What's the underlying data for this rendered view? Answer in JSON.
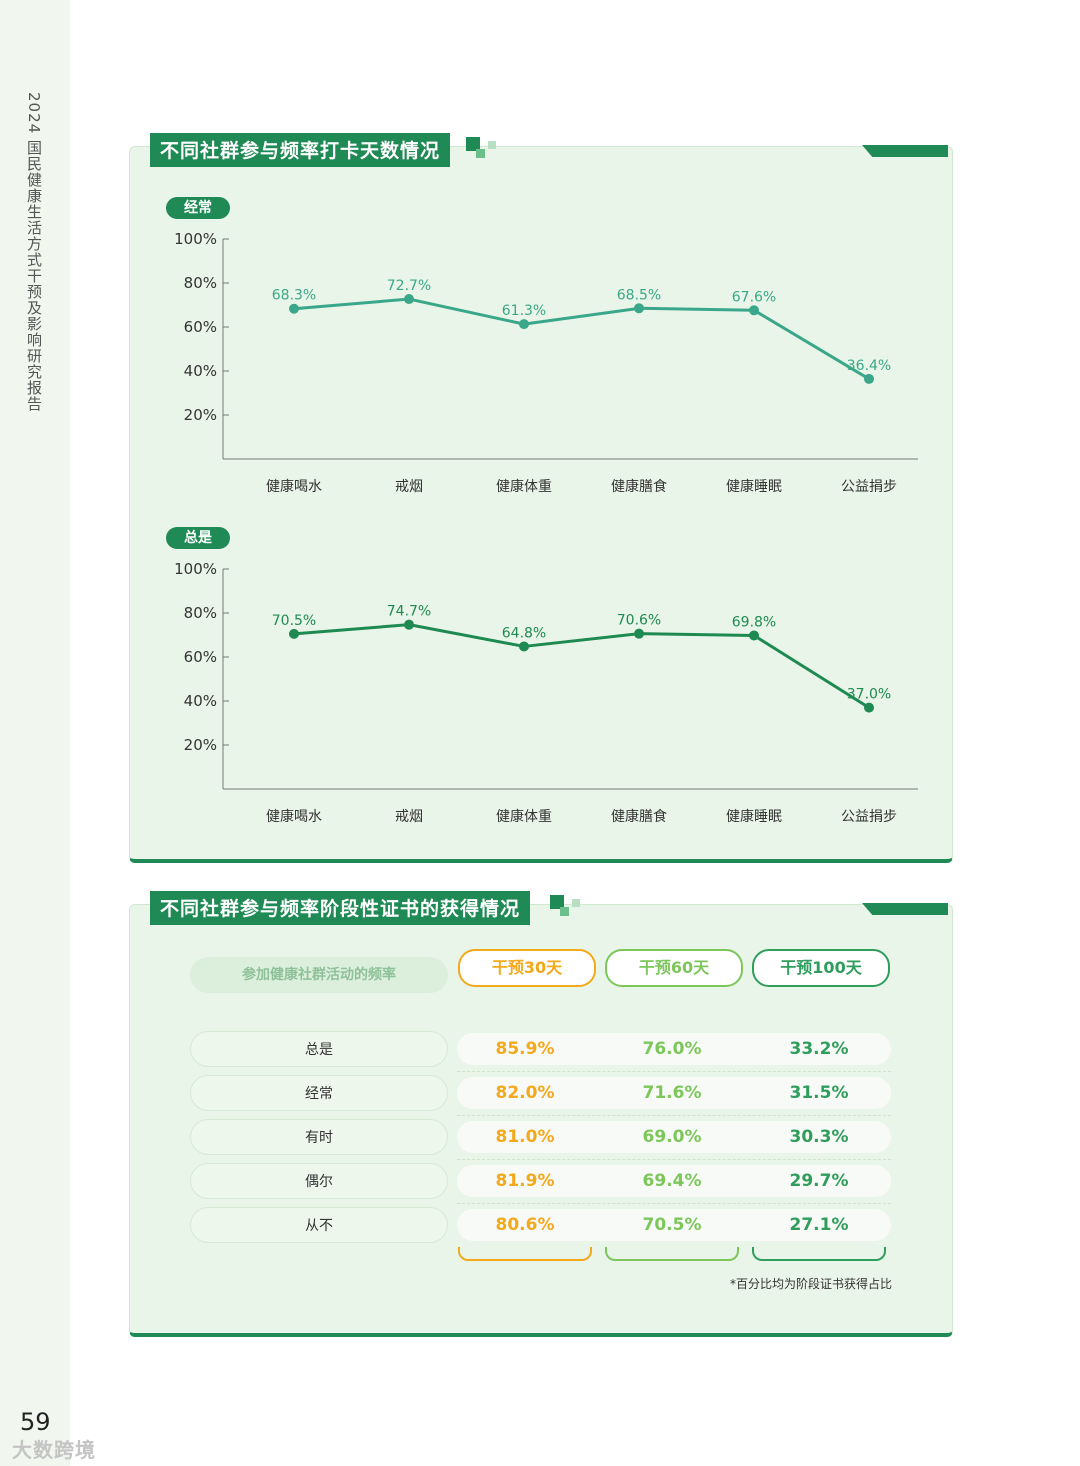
{
  "page": {
    "side_title": "2024 国民健康生活方式干预及影响研究报告",
    "page_number": "59",
    "watermark": "大数跨境"
  },
  "colors": {
    "brand_green": "#1f8a55",
    "series_often": "#3aa78a",
    "series_always": "#1e8a52",
    "col_30": "#f4a81b",
    "col_60": "#7cc65a",
    "col_100": "#2f9d5c"
  },
  "chart_panel": {
    "title": "不同社群参与频率打卡天数情况"
  },
  "chart_data": [
    {
      "type": "line",
      "title": "经常",
      "categories": [
        "健康喝水",
        "戒烟",
        "健康体重",
        "健康膳食",
        "健康睡眠",
        "公益捐步"
      ],
      "values": [
        68.3,
        72.7,
        61.3,
        68.5,
        67.6,
        36.4
      ],
      "data_labels": [
        "68.3%",
        "72.7%",
        "61.3%",
        "68.5%",
        "67.6%",
        "36.4%"
      ],
      "y_ticks": [
        "100%",
        "80%",
        "60%",
        "40%",
        "20%"
      ],
      "ylim": [
        0,
        100
      ],
      "grid": false
    },
    {
      "type": "line",
      "title": "总是",
      "categories": [
        "健康喝水",
        "戒烟",
        "健康体重",
        "健康膳食",
        "健康睡眠",
        "公益捐步"
      ],
      "values": [
        70.5,
        74.7,
        64.8,
        70.6,
        69.8,
        37.0
      ],
      "data_labels": [
        "70.5%",
        "74.7%",
        "64.8%",
        "70.6%",
        "69.8%",
        "37.0%"
      ],
      "y_ticks": [
        "100%",
        "80%",
        "60%",
        "40%",
        "20%"
      ],
      "ylim": [
        0,
        100
      ],
      "grid": false
    }
  ],
  "table_panel": {
    "title": "不同社群参与频率阶段性证书的获得情况",
    "row_header": "参加健康社群活动的频率",
    "columns": [
      "干预30天",
      "干预60天",
      "干预100天"
    ],
    "rows": [
      {
        "label": "总是",
        "values": [
          "85.9%",
          "76.0%",
          "33.2%"
        ]
      },
      {
        "label": "经常",
        "values": [
          "82.0%",
          "71.6%",
          "31.5%"
        ]
      },
      {
        "label": "有时",
        "values": [
          "81.0%",
          "69.0%",
          "30.3%"
        ]
      },
      {
        "label": "偶尔",
        "values": [
          "81.9%",
          "69.4%",
          "29.7%"
        ]
      },
      {
        "label": "从不",
        "values": [
          "80.6%",
          "70.5%",
          "27.1%"
        ]
      }
    ],
    "footnote": "*百分比均为阶段证书获得占比"
  }
}
